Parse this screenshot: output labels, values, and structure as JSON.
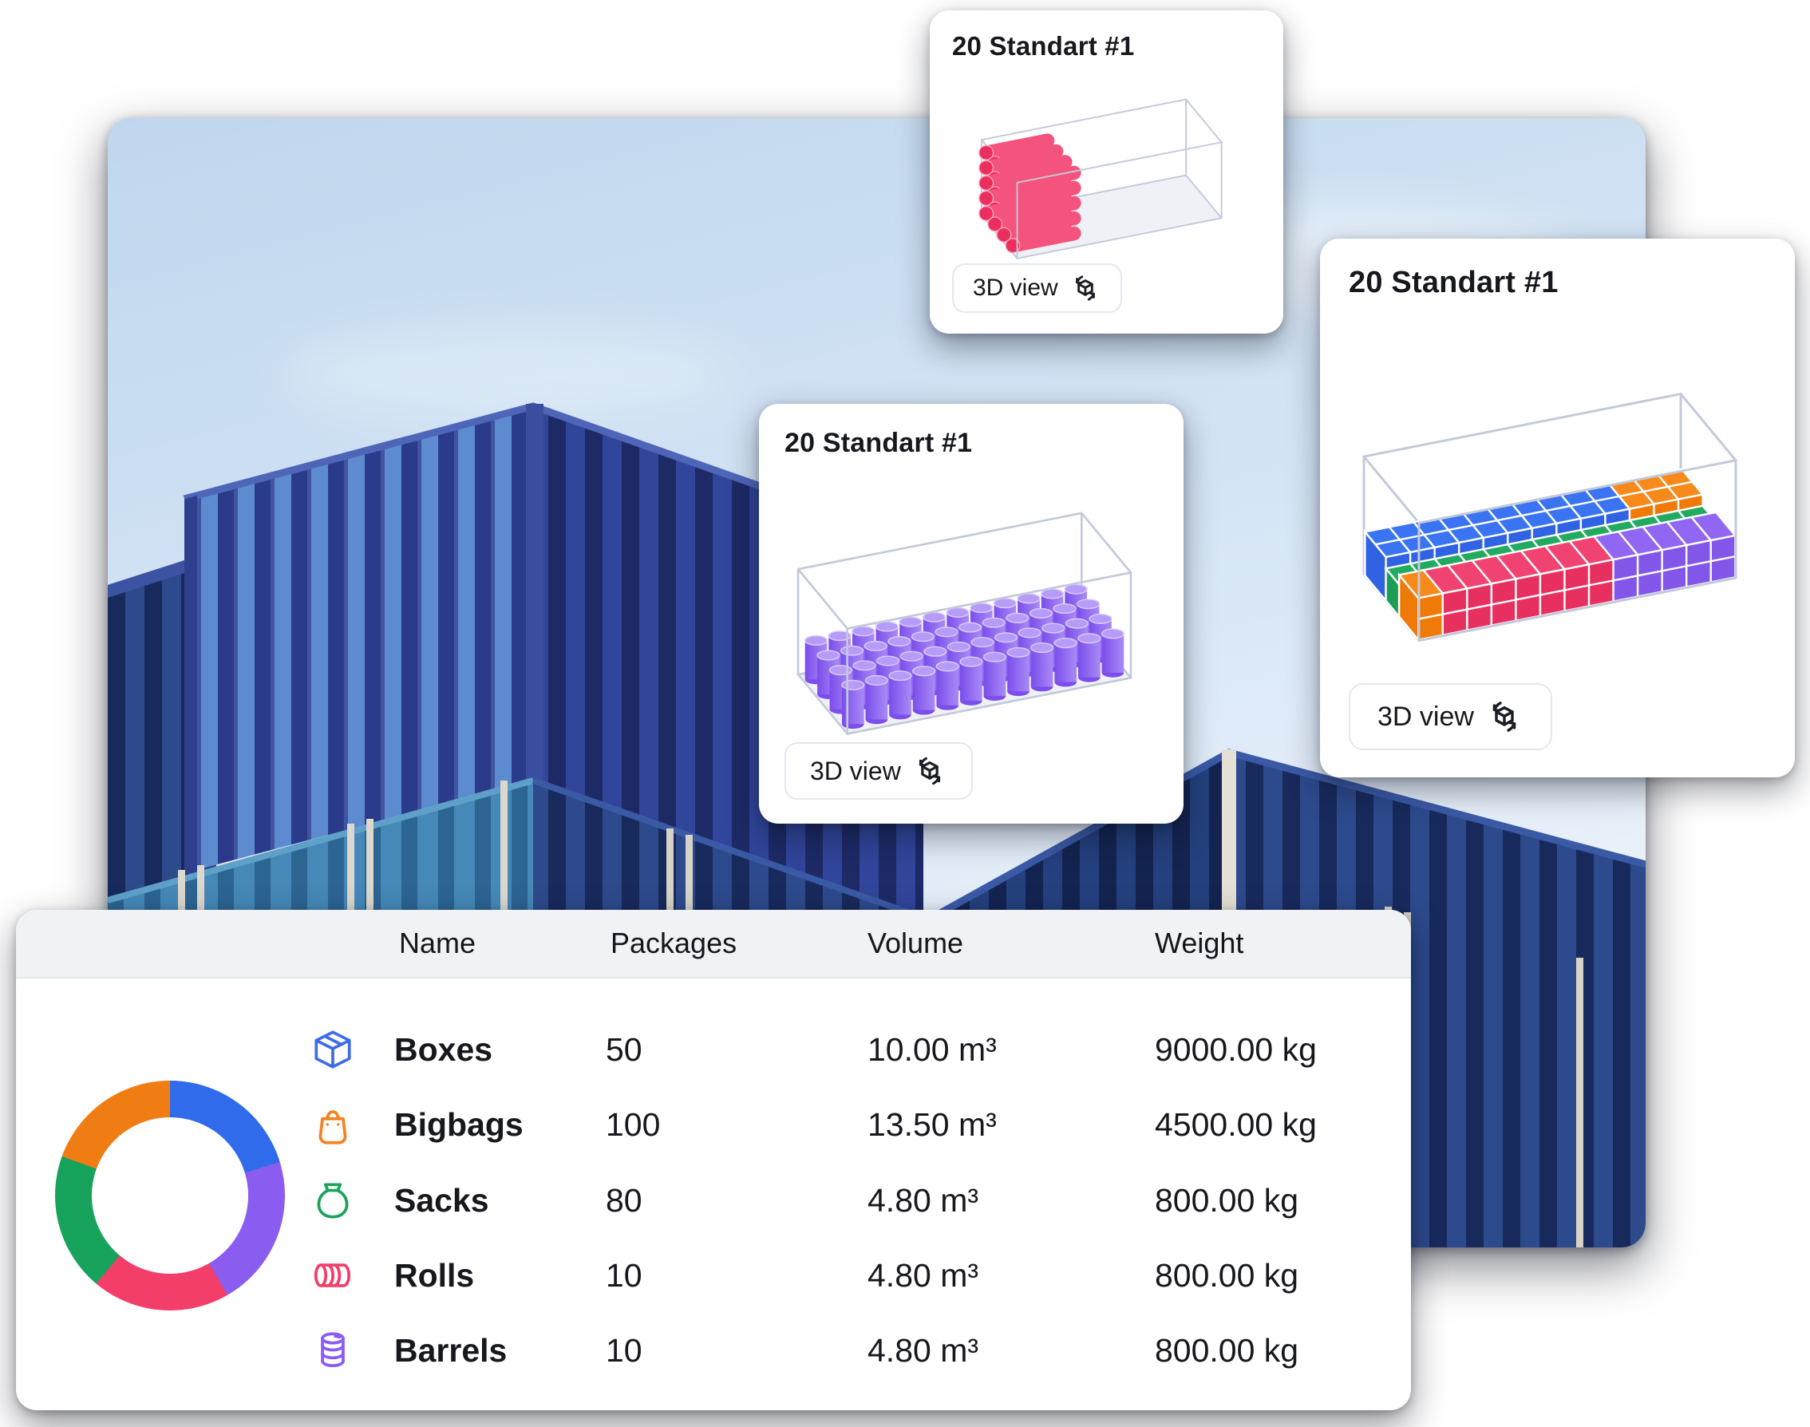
{
  "photo": {
    "subject": "stacked-blue-shipping-containers-under-light-sky",
    "sky_top": "#bfd7ee",
    "sky_bottom": "#edf3fb"
  },
  "theme": {
    "accent_blue": "#3D6CE8",
    "accent_orange": "#F07D13",
    "accent_green": "#17A35B",
    "accent_pink": "#F23E68",
    "accent_purple": "#8A5CF0",
    "wire_stroke": "#C2C9D9",
    "wire_floor": "#EDF0F6",
    "card_border": "#E3E7EF",
    "header_bg": "#F0F2F6",
    "text": "#16181d"
  },
  "cards": [
    {
      "id": "top",
      "title": "20 Standart #1",
      "button_label": "3D view",
      "scene": "rolls"
    },
    {
      "id": "middle",
      "title": "20 Standart #1",
      "button_label": "3D view",
      "scene": "barrels"
    },
    {
      "id": "right",
      "title": "20 Standart #1",
      "button_label": "3D view",
      "scene": "boxes"
    }
  ],
  "table": {
    "headers": [
      "Name",
      "Packages",
      "Volume",
      "Weight"
    ],
    "rows": [
      {
        "icon": "box-icon",
        "color": "#3D6CE8",
        "name": "Boxes",
        "packages": "50",
        "volume": "10.00 m³",
        "weight": "9000.00 kg"
      },
      {
        "icon": "bag-icon",
        "color": "#F5821F",
        "name": "Bigbags",
        "packages": "100",
        "volume": "13.50 m³",
        "weight": "4500.00 kg"
      },
      {
        "icon": "sack-icon",
        "color": "#1CA35A",
        "name": "Sacks",
        "packages": "80",
        "volume": "4.80 m³",
        "weight": "800.00 kg"
      },
      {
        "icon": "roll-icon",
        "color": "#F23E68",
        "name": "Rolls",
        "packages": "10",
        "volume": "4.80 m³",
        "weight": "800.00 kg"
      },
      {
        "icon": "barrel-icon",
        "color": "#8B5CF6",
        "name": "Barrels",
        "packages": "10",
        "volume": "4.80 m³",
        "weight": "800.00 kg"
      }
    ]
  },
  "chart_data": {
    "type": "pie",
    "subtype": "donut",
    "inner_radius_ratio": 0.68,
    "legend": "none",
    "slices": [
      {
        "label": "Boxes",
        "color": "#2F6BEA",
        "start_deg": 0,
        "end_deg": 73
      },
      {
        "label": "Barrels",
        "color": "#8A5CF0",
        "start_deg": 73,
        "end_deg": 150
      },
      {
        "label": "Rolls",
        "color": "#F23E68",
        "start_deg": 150,
        "end_deg": 220
      },
      {
        "label": "Sacks",
        "color": "#17A35B",
        "start_deg": 220,
        "end_deg": 290
      },
      {
        "label": "Bigbags",
        "color": "#F07D13",
        "start_deg": 290,
        "end_deg": 360
      }
    ]
  },
  "scenes": {
    "wireframe": {
      "stroke": "#C2C9D9",
      "floor": "#EDF0F6"
    },
    "rolls": {
      "kind": "rolls",
      "rows": 5,
      "cols": 4,
      "length": 0.3,
      "radius": 11.5,
      "body": "#F4537D",
      "end": "#EC2E5F",
      "rim": "#F9A8BF"
    },
    "barrels": {
      "kind": "barrels",
      "cols": 12,
      "rows": 4,
      "radius": 13,
      "height": 46,
      "body_from": "#7B4DEB",
      "body_to": "#A98BF6",
      "top": "#B79BF9",
      "top_rim": "#D9CCFB"
    },
    "boxes": {
      "kind": "boxes",
      "cols": 13,
      "bands": [
        {
          "v0": 0.02,
          "v1": 0.4,
          "h": 46,
          "split": true,
          "segments": [
            {
              "color": "#3A74F2",
              "front": "#2F63E4",
              "count": 10
            },
            {
              "color": "#F8891B",
              "front": "#EF7A08",
              "count": 3
            }
          ]
        },
        {
          "v0": 0.4,
          "v1": 0.64,
          "h": 34,
          "segments": [
            {
              "color": "#22AB60",
              "front": "#1B9D55",
              "count": 13
            }
          ]
        },
        {
          "v0": 0.64,
          "v1": 0.99,
          "h": 44,
          "seam": true,
          "segments": [
            {
              "color": "#F8891B",
              "front": "#EF7A08",
              "count": 1
            },
            {
              "color": "#F14371",
              "front": "#E83060",
              "count": 7
            },
            {
              "color": "#9166F2",
              "front": "#8356EA",
              "count": 5
            }
          ]
        }
      ]
    }
  }
}
